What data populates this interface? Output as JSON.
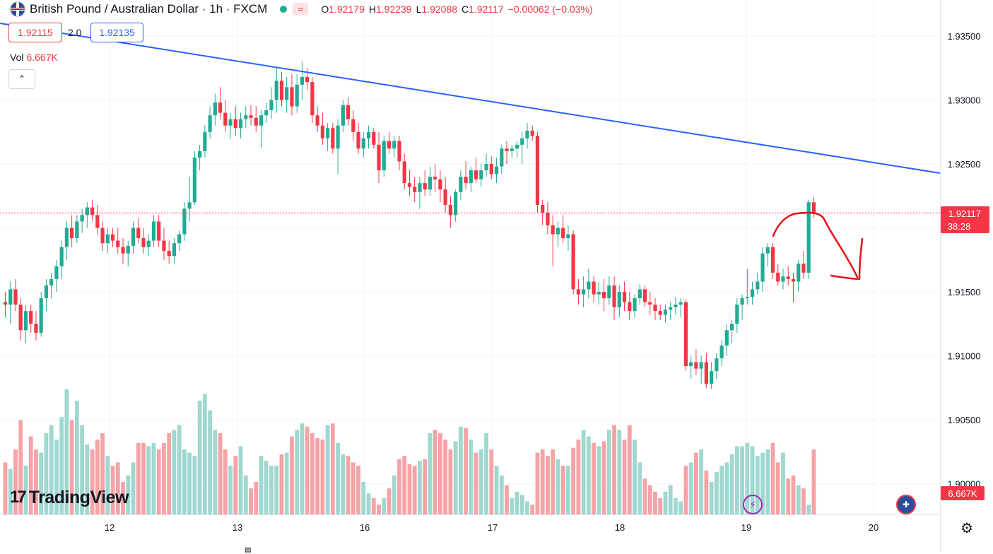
{
  "header": {
    "title": "British Pound / Australian Dollar · 1h · FXCM",
    "open_label": "O",
    "open": "1.92179",
    "high_label": "H",
    "high": "1.92239",
    "low_label": "L",
    "low": "1.92088",
    "close_label": "C",
    "close": "1.92117",
    "change": "−0.00062 (−0.03%)",
    "status_icon": "market-open-dot",
    "wave_icon": "≈"
  },
  "quote": {
    "bid": "1.92115",
    "spread": "2.0",
    "ask": "1.92135"
  },
  "volume": {
    "label": "Vol",
    "value": "6.667K",
    "badge": "6.667K"
  },
  "current_price": {
    "value": "1.92117",
    "countdown": "38:28"
  },
  "logo": "TradingView",
  "colors": {
    "up": "#22ab94",
    "down": "#f23645",
    "trendline": "#2962ff",
    "annotation": "#e0191f",
    "vol_up": "#9fd8cf",
    "vol_down": "#f5a3a6"
  },
  "chart_data": {
    "type": "candlestick",
    "symbol": "GBPAUD",
    "interval": "1h",
    "y_ticks": [
      "1.93500",
      "1.93000",
      "1.92500",
      "1.92000",
      "1.91500",
      "1.91000",
      "1.90500",
      "1.90000"
    ],
    "x_ticks": [
      "12",
      "13",
      "16",
      "17",
      "18",
      "19",
      "20"
    ],
    "ylim": [
      1.8985,
      1.9365
    ],
    "trendline": {
      "from": [
        0,
        1.9355
      ],
      "to": [
        149,
        1.9244
      ]
    },
    "last_price": 1.92117,
    "candles": [
      [
        1.9142,
        1.915,
        1.913,
        1.914
      ],
      [
        1.914,
        1.9158,
        1.9125,
        1.9152
      ],
      [
        1.9152,
        1.916,
        1.9135,
        1.914
      ],
      [
        1.914,
        1.9145,
        1.9112,
        1.912
      ],
      [
        1.912,
        1.914,
        1.911,
        1.9135
      ],
      [
        1.9135,
        1.914,
        1.9118,
        1.9125
      ],
      [
        1.9125,
        1.9135,
        1.9112,
        1.9118
      ],
      [
        1.9118,
        1.915,
        1.9115,
        1.9145
      ],
      [
        1.9145,
        1.916,
        1.9135,
        1.9155
      ],
      [
        1.9155,
        1.9165,
        1.9145,
        1.916
      ],
      [
        1.916,
        1.9175,
        1.915,
        1.917
      ],
      [
        1.917,
        1.919,
        1.916,
        1.9185
      ],
      [
        1.9185,
        1.9205,
        1.9175,
        1.92
      ],
      [
        1.92,
        1.921,
        1.9185,
        1.9192
      ],
      [
        1.9192,
        1.921,
        1.9188,
        1.9205
      ],
      [
        1.9205,
        1.9215,
        1.9196,
        1.921
      ],
      [
        1.921,
        1.922,
        1.92,
        1.9216
      ],
      [
        1.9216,
        1.9222,
        1.9205,
        1.921
      ],
      [
        1.921,
        1.9218,
        1.9195,
        1.92
      ],
      [
        1.92,
        1.9205,
        1.9182,
        1.9188
      ],
      [
        1.9188,
        1.92,
        1.918,
        1.9195
      ],
      [
        1.9195,
        1.92,
        1.9185,
        1.919
      ],
      [
        1.919,
        1.92,
        1.918,
        1.9185
      ],
      [
        1.9185,
        1.9192,
        1.9172,
        1.918
      ],
      [
        1.918,
        1.919,
        1.917,
        1.9186
      ],
      [
        1.9186,
        1.9205,
        1.918,
        1.92
      ],
      [
        1.92,
        1.9208,
        1.9188,
        1.9192
      ],
      [
        1.9192,
        1.92,
        1.918,
        1.9185
      ],
      [
        1.9185,
        1.9195,
        1.9178,
        1.919
      ],
      [
        1.919,
        1.921,
        1.9185,
        1.9205
      ],
      [
        1.9205,
        1.921,
        1.9185,
        1.919
      ],
      [
        1.919,
        1.92,
        1.9175,
        1.9182
      ],
      [
        1.9182,
        1.919,
        1.9172,
        1.9178
      ],
      [
        1.9178,
        1.9192,
        1.9172,
        1.9188
      ],
      [
        1.9188,
        1.9198,
        1.9182,
        1.9195
      ],
      [
        1.9195,
        1.922,
        1.919,
        1.9215
      ],
      [
        1.9215,
        1.924,
        1.9205,
        1.922
      ],
      [
        1.922,
        1.926,
        1.9218,
        1.9255
      ],
      [
        1.9255,
        1.9265,
        1.9245,
        1.926
      ],
      [
        1.926,
        1.928,
        1.9255,
        1.9275
      ],
      [
        1.9275,
        1.9295,
        1.927,
        1.9288
      ],
      [
        1.9288,
        1.9305,
        1.928,
        1.9298
      ],
      [
        1.9298,
        1.931,
        1.9285,
        1.929
      ],
      [
        1.929,
        1.93,
        1.9275,
        1.928
      ],
      [
        1.928,
        1.929,
        1.927,
        1.9285
      ],
      [
        1.9285,
        1.9295,
        1.9272,
        1.9278
      ],
      [
        1.9278,
        1.929,
        1.927,
        1.9285
      ],
      [
        1.9285,
        1.9295,
        1.9278,
        1.9288
      ],
      [
        1.9288,
        1.9296,
        1.928,
        1.9286
      ],
      [
        1.9286,
        1.9295,
        1.9275,
        1.928
      ],
      [
        1.928,
        1.9292,
        1.9262,
        1.9288
      ],
      [
        1.9288,
        1.9298,
        1.9282,
        1.9292
      ],
      [
        1.9292,
        1.931,
        1.9285,
        1.93
      ],
      [
        1.93,
        1.9325,
        1.929,
        1.9315
      ],
      [
        1.9315,
        1.9322,
        1.9295,
        1.93
      ],
      [
        1.93,
        1.9318,
        1.929,
        1.931
      ],
      [
        1.931,
        1.932,
        1.9288,
        1.9295
      ],
      [
        1.9295,
        1.932,
        1.929,
        1.9312
      ],
      [
        1.9312,
        1.933,
        1.93,
        1.9318
      ],
      [
        1.9318,
        1.9325,
        1.9308,
        1.9314
      ],
      [
        1.9314,
        1.9318,
        1.9282,
        1.9288
      ],
      [
        1.9288,
        1.9295,
        1.9275,
        1.928
      ],
      [
        1.928,
        1.929,
        1.9265,
        1.927
      ],
      [
        1.927,
        1.9282,
        1.926,
        1.9278
      ],
      [
        1.9278,
        1.9282,
        1.9258,
        1.9262
      ],
      [
        1.9262,
        1.9285,
        1.9242,
        1.928
      ],
      [
        1.928,
        1.93,
        1.9275,
        1.9296
      ],
      [
        1.9296,
        1.9302,
        1.928,
        1.9285
      ],
      [
        1.9285,
        1.9292,
        1.9268,
        1.9275
      ],
      [
        1.9275,
        1.9282,
        1.9258,
        1.9262
      ],
      [
        1.9262,
        1.9275,
        1.9255,
        1.927
      ],
      [
        1.927,
        1.928,
        1.9262,
        1.9275
      ],
      [
        1.9275,
        1.9278,
        1.9262,
        1.9265
      ],
      [
        1.9265,
        1.9275,
        1.9235,
        1.9245
      ],
      [
        1.9245,
        1.9272,
        1.924,
        1.9268
      ],
      [
        1.9268,
        1.9275,
        1.9258,
        1.9262
      ],
      [
        1.9262,
        1.9272,
        1.9255,
        1.9268
      ],
      [
        1.9268,
        1.9272,
        1.9245,
        1.9252
      ],
      [
        1.9252,
        1.9258,
        1.923,
        1.9235
      ],
      [
        1.9235,
        1.9245,
        1.9225,
        1.9232
      ],
      [
        1.9232,
        1.924,
        1.922,
        1.9228
      ],
      [
        1.9228,
        1.924,
        1.9215,
        1.9235
      ],
      [
        1.9235,
        1.9245,
        1.9225,
        1.923
      ],
      [
        1.923,
        1.9248,
        1.9225,
        1.924
      ],
      [
        1.924,
        1.925,
        1.9228,
        1.9238
      ],
      [
        1.9238,
        1.9245,
        1.922,
        1.923
      ],
      [
        1.923,
        1.924,
        1.9212,
        1.9218
      ],
      [
        1.9218,
        1.9225,
        1.92,
        1.921
      ],
      [
        1.921,
        1.923,
        1.9205,
        1.9228
      ],
      [
        1.9228,
        1.9245,
        1.9222,
        1.924
      ],
      [
        1.924,
        1.9252,
        1.923,
        1.9235
      ],
      [
        1.9235,
        1.9248,
        1.9228,
        1.9245
      ],
      [
        1.9245,
        1.9255,
        1.9235,
        1.9238
      ],
      [
        1.9238,
        1.925,
        1.9232,
        1.9245
      ],
      [
        1.9245,
        1.9258,
        1.924,
        1.925
      ],
      [
        1.925,
        1.9256,
        1.9238,
        1.9242
      ],
      [
        1.9242,
        1.9255,
        1.9235,
        1.9248
      ],
      [
        1.9248,
        1.9265,
        1.9242,
        1.9262
      ],
      [
        1.9262,
        1.9268,
        1.925,
        1.926
      ],
      [
        1.926,
        1.9265,
        1.9255,
        1.9262
      ],
      [
        1.9262,
        1.9268,
        1.9255,
        1.9265
      ],
      [
        1.9265,
        1.9275,
        1.925,
        1.927
      ],
      [
        1.927,
        1.9282,
        1.9262,
        1.9276
      ],
      [
        1.9276,
        1.928,
        1.9268,
        1.9272
      ],
      [
        1.9272,
        1.9275,
        1.9212,
        1.9218
      ],
      [
        1.9218,
        1.9222,
        1.9202,
        1.9212
      ],
      [
        1.9212,
        1.922,
        1.9195,
        1.9202
      ],
      [
        1.9202,
        1.921,
        1.917,
        1.9195
      ],
      [
        1.9195,
        1.9205,
        1.9185,
        1.92
      ],
      [
        1.92,
        1.921,
        1.9188,
        1.9192
      ],
      [
        1.9192,
        1.9202,
        1.9182,
        1.9195
      ],
      [
        1.9195,
        1.9198,
        1.9148,
        1.9152
      ],
      [
        1.9152,
        1.916,
        1.914,
        1.9148
      ],
      [
        1.9148,
        1.9162,
        1.9138,
        1.9152
      ],
      [
        1.9152,
        1.9168,
        1.9145,
        1.9158
      ],
      [
        1.9158,
        1.9162,
        1.9142,
        1.9148
      ],
      [
        1.9148,
        1.9158,
        1.914,
        1.915
      ],
      [
        1.915,
        1.916,
        1.9135,
        1.9145
      ],
      [
        1.9145,
        1.9162,
        1.914,
        1.9155
      ],
      [
        1.9155,
        1.9162,
        1.9128,
        1.9138
      ],
      [
        1.9138,
        1.9155,
        1.913,
        1.915
      ],
      [
        1.915,
        1.9158,
        1.9135,
        1.9142
      ],
      [
        1.9142,
        1.915,
        1.9128,
        1.9135
      ],
      [
        1.9135,
        1.9148,
        1.913,
        1.9145
      ],
      [
        1.9145,
        1.9156,
        1.914,
        1.9152
      ],
      [
        1.9152,
        1.9155,
        1.9138,
        1.9142
      ],
      [
        1.9142,
        1.915,
        1.9132,
        1.914
      ],
      [
        1.914,
        1.9145,
        1.9128,
        1.9135
      ],
      [
        1.9135,
        1.914,
        1.9128,
        1.9132
      ],
      [
        1.9132,
        1.914,
        1.9126,
        1.9136
      ],
      [
        1.9136,
        1.9142,
        1.9128,
        1.9138
      ],
      [
        1.9138,
        1.9146,
        1.9132,
        1.914
      ],
      [
        1.914,
        1.9145,
        1.913,
        1.9142
      ],
      [
        1.9142,
        1.9144,
        1.9088,
        1.9092
      ],
      [
        1.9092,
        1.91,
        1.9082,
        1.9095
      ],
      [
        1.9095,
        1.9105,
        1.9085,
        1.909
      ],
      [
        1.909,
        1.91,
        1.9078,
        1.9095
      ],
      [
        1.9095,
        1.9102,
        1.9075,
        1.9078
      ],
      [
        1.9078,
        1.9095,
        1.9074,
        1.9088
      ],
      [
        1.9088,
        1.9102,
        1.9082,
        1.9098
      ],
      [
        1.9098,
        1.9112,
        1.9092,
        1.9108
      ],
      [
        1.9108,
        1.9125,
        1.91,
        1.912
      ],
      [
        1.912,
        1.9128,
        1.911,
        1.9125
      ],
      [
        1.9125,
        1.9145,
        1.9118,
        1.914
      ],
      [
        1.914,
        1.9148,
        1.9128,
        1.9145
      ],
      [
        1.9145,
        1.9168,
        1.914,
        1.9146
      ],
      [
        1.9146,
        1.9158,
        1.914,
        1.9152
      ],
      [
        1.9152,
        1.9165,
        1.9148,
        1.9158
      ],
      [
        1.9158,
        1.9185,
        1.915,
        1.918
      ],
      [
        1.918,
        1.9188,
        1.917,
        1.9185
      ],
      [
        1.9185,
        1.9188,
        1.916,
        1.9165
      ],
      [
        1.9165,
        1.9172,
        1.9155,
        1.9158
      ],
      [
        1.9158,
        1.9168,
        1.9152,
        1.9162
      ],
      [
        1.9162,
        1.917,
        1.9155,
        1.916
      ],
      [
        1.916,
        1.9165,
        1.9142,
        1.9158
      ],
      [
        1.9158,
        1.9175,
        1.915,
        1.9172
      ],
      [
        1.9172,
        1.9182,
        1.916,
        1.9165
      ],
      [
        1.9165,
        1.9222,
        1.916,
        1.922
      ],
      [
        1.922,
        1.9224,
        1.9208,
        1.9212
      ]
    ],
    "volumes": [
      0.32,
      0.28,
      0.4,
      0.58,
      0.3,
      0.48,
      0.4,
      0.38,
      0.5,
      0.55,
      0.46,
      0.6,
      0.77,
      0.58,
      0.7,
      0.55,
      0.43,
      0.4,
      0.46,
      0.5,
      0.36,
      0.3,
      0.32,
      0.2,
      0.24,
      0.32,
      0.44,
      0.44,
      0.42,
      0.44,
      0.4,
      0.44,
      0.5,
      0.52,
      0.55,
      0.4,
      0.38,
      0.36,
      0.7,
      0.74,
      0.64,
      0.52,
      0.5,
      0.4,
      0.3,
      0.36,
      0.42,
      0.24,
      0.16,
      0.2,
      0.36,
      0.33,
      0.3,
      0.3,
      0.37,
      0.38,
      0.48,
      0.52,
      0.56,
      0.54,
      0.5,
      0.47,
      0.46,
      0.55,
      0.56,
      0.44,
      0.37,
      0.36,
      0.32,
      0.3,
      0.2,
      0.13,
      0.1,
      0.06,
      0.1,
      0.16,
      0.24,
      0.34,
      0.36,
      0.31,
      0.3,
      0.33,
      0.34,
      0.5,
      0.52,
      0.5,
      0.46,
      0.4,
      0.45,
      0.54,
      0.53,
      0.46,
      0.38,
      0.4,
      0.5,
      0.4,
      0.3,
      0.24,
      0.18,
      0.1,
      0.14,
      0.12,
      0.08,
      0.06,
      0.38,
      0.4,
      0.36,
      0.4,
      0.34,
      0.3,
      0.3,
      0.41,
      0.46,
      0.52,
      0.48,
      0.44,
      0.42,
      0.45,
      0.52,
      0.55,
      0.52,
      0.46,
      0.55,
      0.46,
      0.32,
      0.22,
      0.18,
      0.14,
      0.1,
      0.14,
      0.18,
      0.1,
      0.08,
      0.3,
      0.32,
      0.38,
      0.4,
      0.27,
      0.2,
      0.26,
      0.3,
      0.32,
      0.37,
      0.42,
      0.42,
      0.44,
      0.42,
      0.36,
      0.38,
      0.4,
      0.44,
      0.32,
      0.38,
      0.22,
      0.24,
      0.18,
      0.16,
      0.06,
      0.4
    ]
  }
}
